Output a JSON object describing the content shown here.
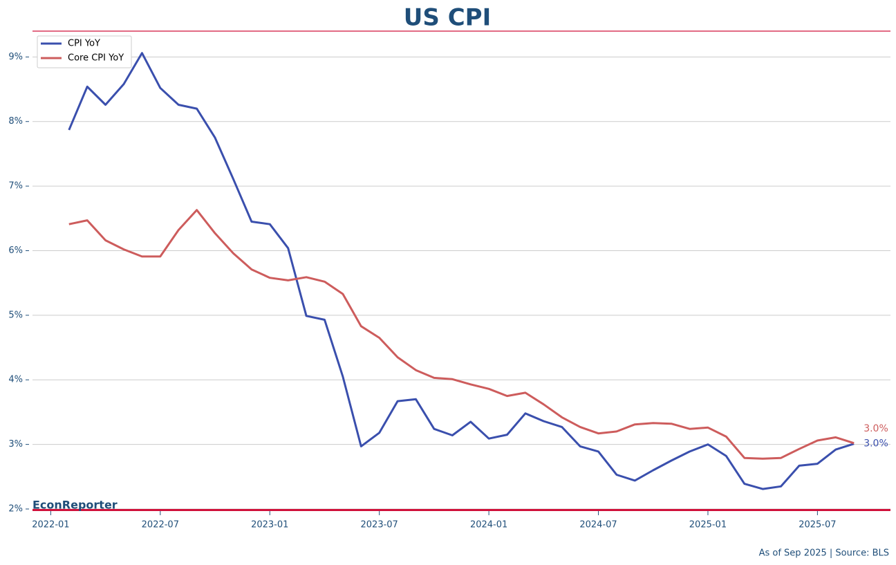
{
  "chart_data": {
    "type": "line",
    "title": "US CPI",
    "watermark": "EconReporter",
    "footnote": "As of Sep 2025 | Source: BLS",
    "x": [
      "2022-02",
      "2022-03",
      "2022-04",
      "2022-05",
      "2022-06",
      "2022-07",
      "2022-08",
      "2022-09",
      "2022-10",
      "2022-11",
      "2022-12",
      "2023-01",
      "2023-02",
      "2023-03",
      "2023-04",
      "2023-05",
      "2023-06",
      "2023-07",
      "2023-08",
      "2023-09",
      "2023-10",
      "2023-11",
      "2023-12",
      "2024-01",
      "2024-02",
      "2024-03",
      "2024-04",
      "2024-05",
      "2024-06",
      "2024-07",
      "2024-08",
      "2024-09",
      "2024-10",
      "2024-11",
      "2024-12",
      "2025-01",
      "2025-02",
      "2025-03",
      "2025-04",
      "2025-05",
      "2025-06",
      "2025-07",
      "2025-08",
      "2025-09"
    ],
    "series": [
      {
        "name": "CPI YoY",
        "color": "#3a4fad",
        "values": [
          7.87,
          8.54,
          8.26,
          8.58,
          9.06,
          8.52,
          8.26,
          8.2,
          7.75,
          7.11,
          6.45,
          6.41,
          6.04,
          4.99,
          4.93,
          4.05,
          2.97,
          3.18,
          3.67,
          3.7,
          3.24,
          3.14,
          3.35,
          3.09,
          3.15,
          3.48,
          3.36,
          3.27,
          2.97,
          2.89,
          2.53,
          2.44,
          2.6,
          2.75,
          2.89,
          3.0,
          2.82,
          2.39,
          2.31,
          2.35,
          2.67,
          2.7,
          2.92,
          3.01
        ],
        "value_labels": [
          null,
          null,
          null,
          null,
          null,
          null,
          null,
          null,
          null,
          null,
          null,
          null,
          null,
          null,
          null,
          null,
          null,
          null,
          null,
          null,
          null,
          null,
          null,
          null,
          null,
          null,
          null,
          null,
          null,
          null,
          null,
          null,
          null,
          null,
          null,
          null,
          null,
          null,
          null,
          null,
          null,
          null,
          null,
          "3.0%"
        ]
      },
      {
        "name": "Core CPI YoY",
        "color": "#cd5c5c",
        "values": [
          6.41,
          6.47,
          6.16,
          6.02,
          5.91,
          5.91,
          6.32,
          6.63,
          6.27,
          5.96,
          5.71,
          5.58,
          5.54,
          5.59,
          5.52,
          5.33,
          4.83,
          4.65,
          4.35,
          4.15,
          4.03,
          4.01,
          3.93,
          3.86,
          3.75,
          3.8,
          3.62,
          3.42,
          3.27,
          3.17,
          3.2,
          3.31,
          3.33,
          3.32,
          3.24,
          3.26,
          3.12,
          2.79,
          2.78,
          2.79,
          2.93,
          3.06,
          3.11,
          3.02
        ],
        "value_labels": [
          null,
          null,
          null,
          null,
          null,
          null,
          null,
          null,
          null,
          null,
          null,
          null,
          null,
          null,
          null,
          null,
          null,
          null,
          null,
          null,
          null,
          null,
          null,
          null,
          null,
          null,
          null,
          null,
          null,
          null,
          null,
          null,
          null,
          null,
          null,
          null,
          null,
          null,
          null,
          null,
          null,
          null,
          null,
          "3.0%"
        ]
      }
    ],
    "xlim": [
      "2021-12",
      "2025-11"
    ],
    "xticks": [
      "2022-01",
      "2022-07",
      "2023-01",
      "2023-07",
      "2024-01",
      "2024-07",
      "2025-01",
      "2025-07"
    ],
    "ylim": [
      2,
      9.4
    ],
    "yticks": [
      {
        "value": 2,
        "label": "2%"
      },
      {
        "value": 3,
        "label": "3%"
      },
      {
        "value": 4,
        "label": "4%"
      },
      {
        "value": 5,
        "label": "5%"
      },
      {
        "value": 6,
        "label": "6%"
      },
      {
        "value": 7,
        "label": "7%"
      },
      {
        "value": 8,
        "label": "8%"
      },
      {
        "value": 9,
        "label": "9%"
      }
    ],
    "grid": true,
    "legend": "upper-left"
  }
}
